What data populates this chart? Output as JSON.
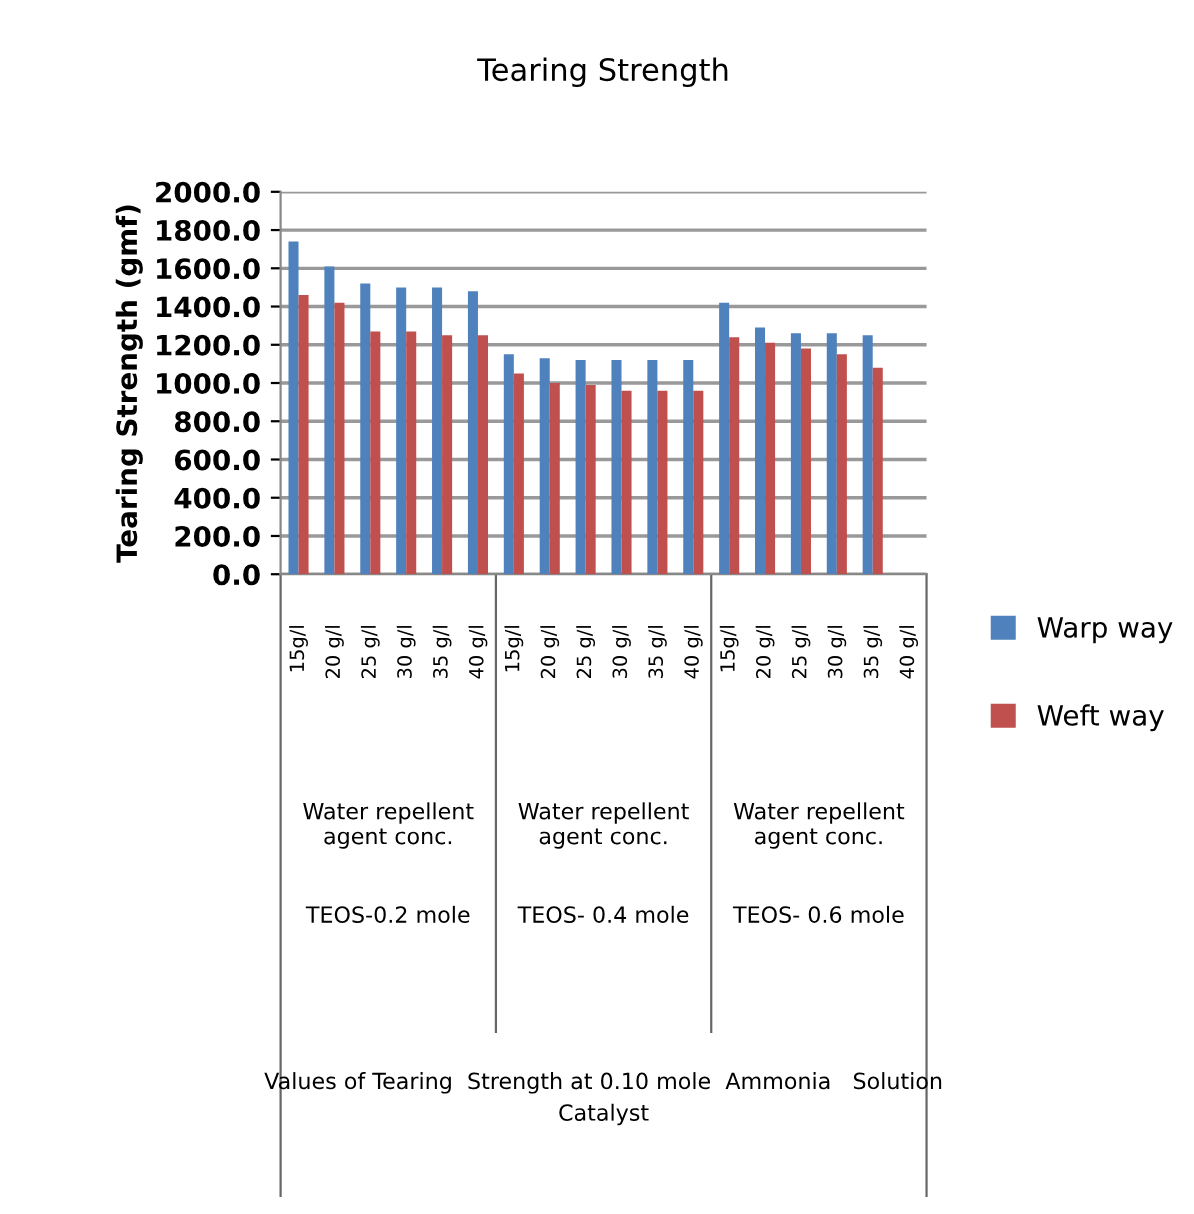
{
  "chart_data": {
    "type": "bar",
    "title": "Tearing Strength",
    "ylabel": "Tearing Strength (gmf)",
    "categories": [
      "15g/l",
      "20 g/l",
      "25 g/l",
      "30 g/l",
      "35 g/l",
      "40 g/l",
      "15g/l",
      "20 g/l",
      "25 g/l",
      "30 g/l",
      "35 g/l",
      "40 g/l",
      "15g/l",
      "20 g/l",
      "25 g/l",
      "30 g/l",
      "35 g/l",
      "40 g/l"
    ],
    "series": [
      {
        "name": "Warp way",
        "color": "#4f81bd",
        "values": [
          1740,
          1610,
          1520,
          1500,
          1500,
          1480,
          1150,
          1130,
          1120,
          1120,
          1120,
          1120,
          1420,
          1290,
          1260,
          1260,
          1250,
          null
        ]
      },
      {
        "name": "Weft way",
        "color": "#c0504d",
        "values": [
          1460,
          1420,
          1270,
          1270,
          1250,
          1250,
          1050,
          1000,
          990,
          960,
          960,
          960,
          1240,
          1210,
          1180,
          1150,
          1080,
          null
        ]
      }
    ],
    "annotations": [
      "Water repellent\nagent conc.",
      "Water repellent\nagent conc.",
      "Water repellent\nagent conc.",
      "TEOS-0.2 mole",
      "TEOS- 0.4 mole",
      "TEOS- 0.6 mole",
      "Values of Tearing  Strength at 0.10 mole  Ammonia   Solution\nCatalyst"
    ],
    "ylim": [
      0,
      2000
    ],
    "yticks": [
      {
        "value": 0,
        "label": "0.0"
      },
      {
        "value": 200,
        "label": "200.0"
      },
      {
        "value": 400,
        "label": "400.0"
      },
      {
        "value": 600,
        "label": "600.0"
      },
      {
        "value": 800,
        "label": "800.0"
      },
      {
        "value": 1000,
        "label": "1000.0"
      },
      {
        "value": 1200,
        "label": "1200.0"
      },
      {
        "value": 1400,
        "label": "1400.0"
      },
      {
        "value": 1600,
        "label": "1600.0"
      },
      {
        "value": 1800,
        "label": "1800.0"
      },
      {
        "value": 2000,
        "label": "2000.0"
      }
    ],
    "grid": "y",
    "legend": "right"
  }
}
